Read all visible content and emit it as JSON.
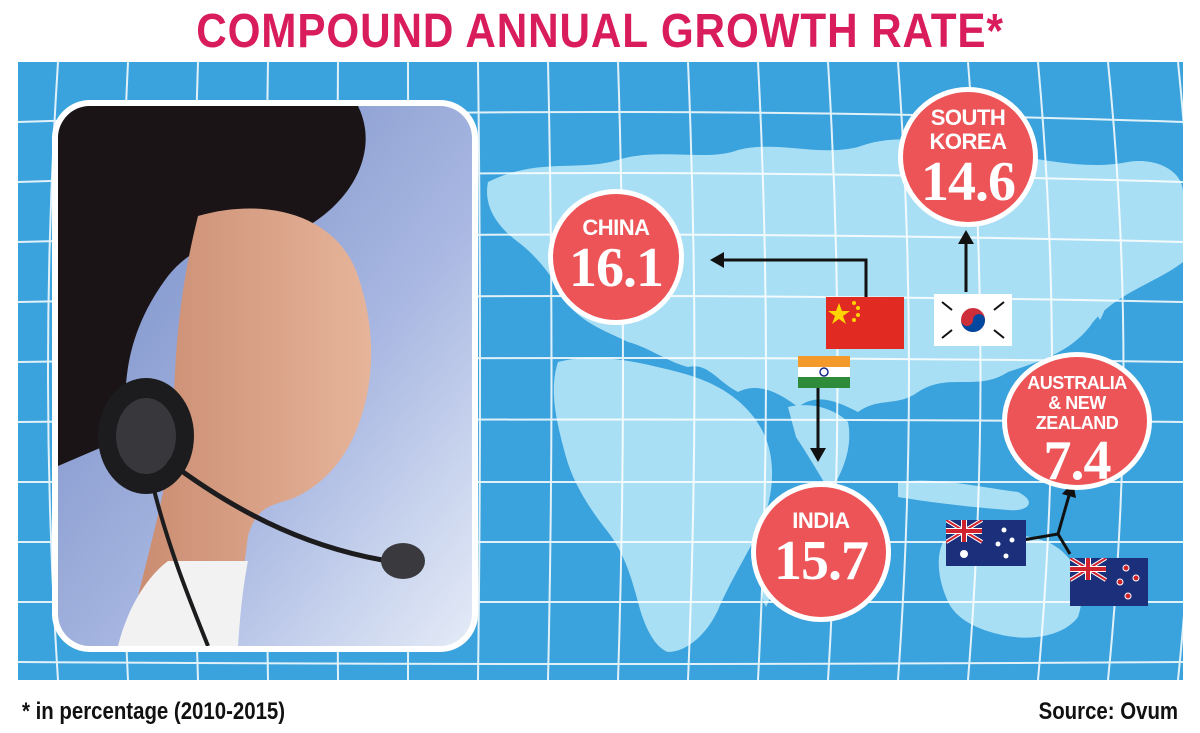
{
  "title": "COMPOUND ANNUAL GROWTH RATE*",
  "footnote": "* in percentage (2010-2015)",
  "source": "Source: Ovum",
  "colors": {
    "title": "#d81c5c",
    "background_map": "#3aa2dc",
    "land": "#a9dff5",
    "bubble": "#ed5458"
  },
  "chart_data": {
    "type": "map",
    "unit": "percentage",
    "period": "2010-2015",
    "regions": [
      {
        "label": "CHINA",
        "value": 16.1,
        "display": "16.1"
      },
      {
        "label": "SOUTH KOREA",
        "label_lines": [
          "SOUTH",
          "KOREA"
        ],
        "value": 14.6,
        "display": "14.6"
      },
      {
        "label": "INDIA",
        "value": 15.7,
        "display": "15.7"
      },
      {
        "label": "AUSTRALIA & NEW ZEALAND",
        "label_lines": [
          "AUSTRALIA",
          "& NEW ZEALAND"
        ],
        "value": 7.4,
        "display": "7.4"
      }
    ]
  }
}
